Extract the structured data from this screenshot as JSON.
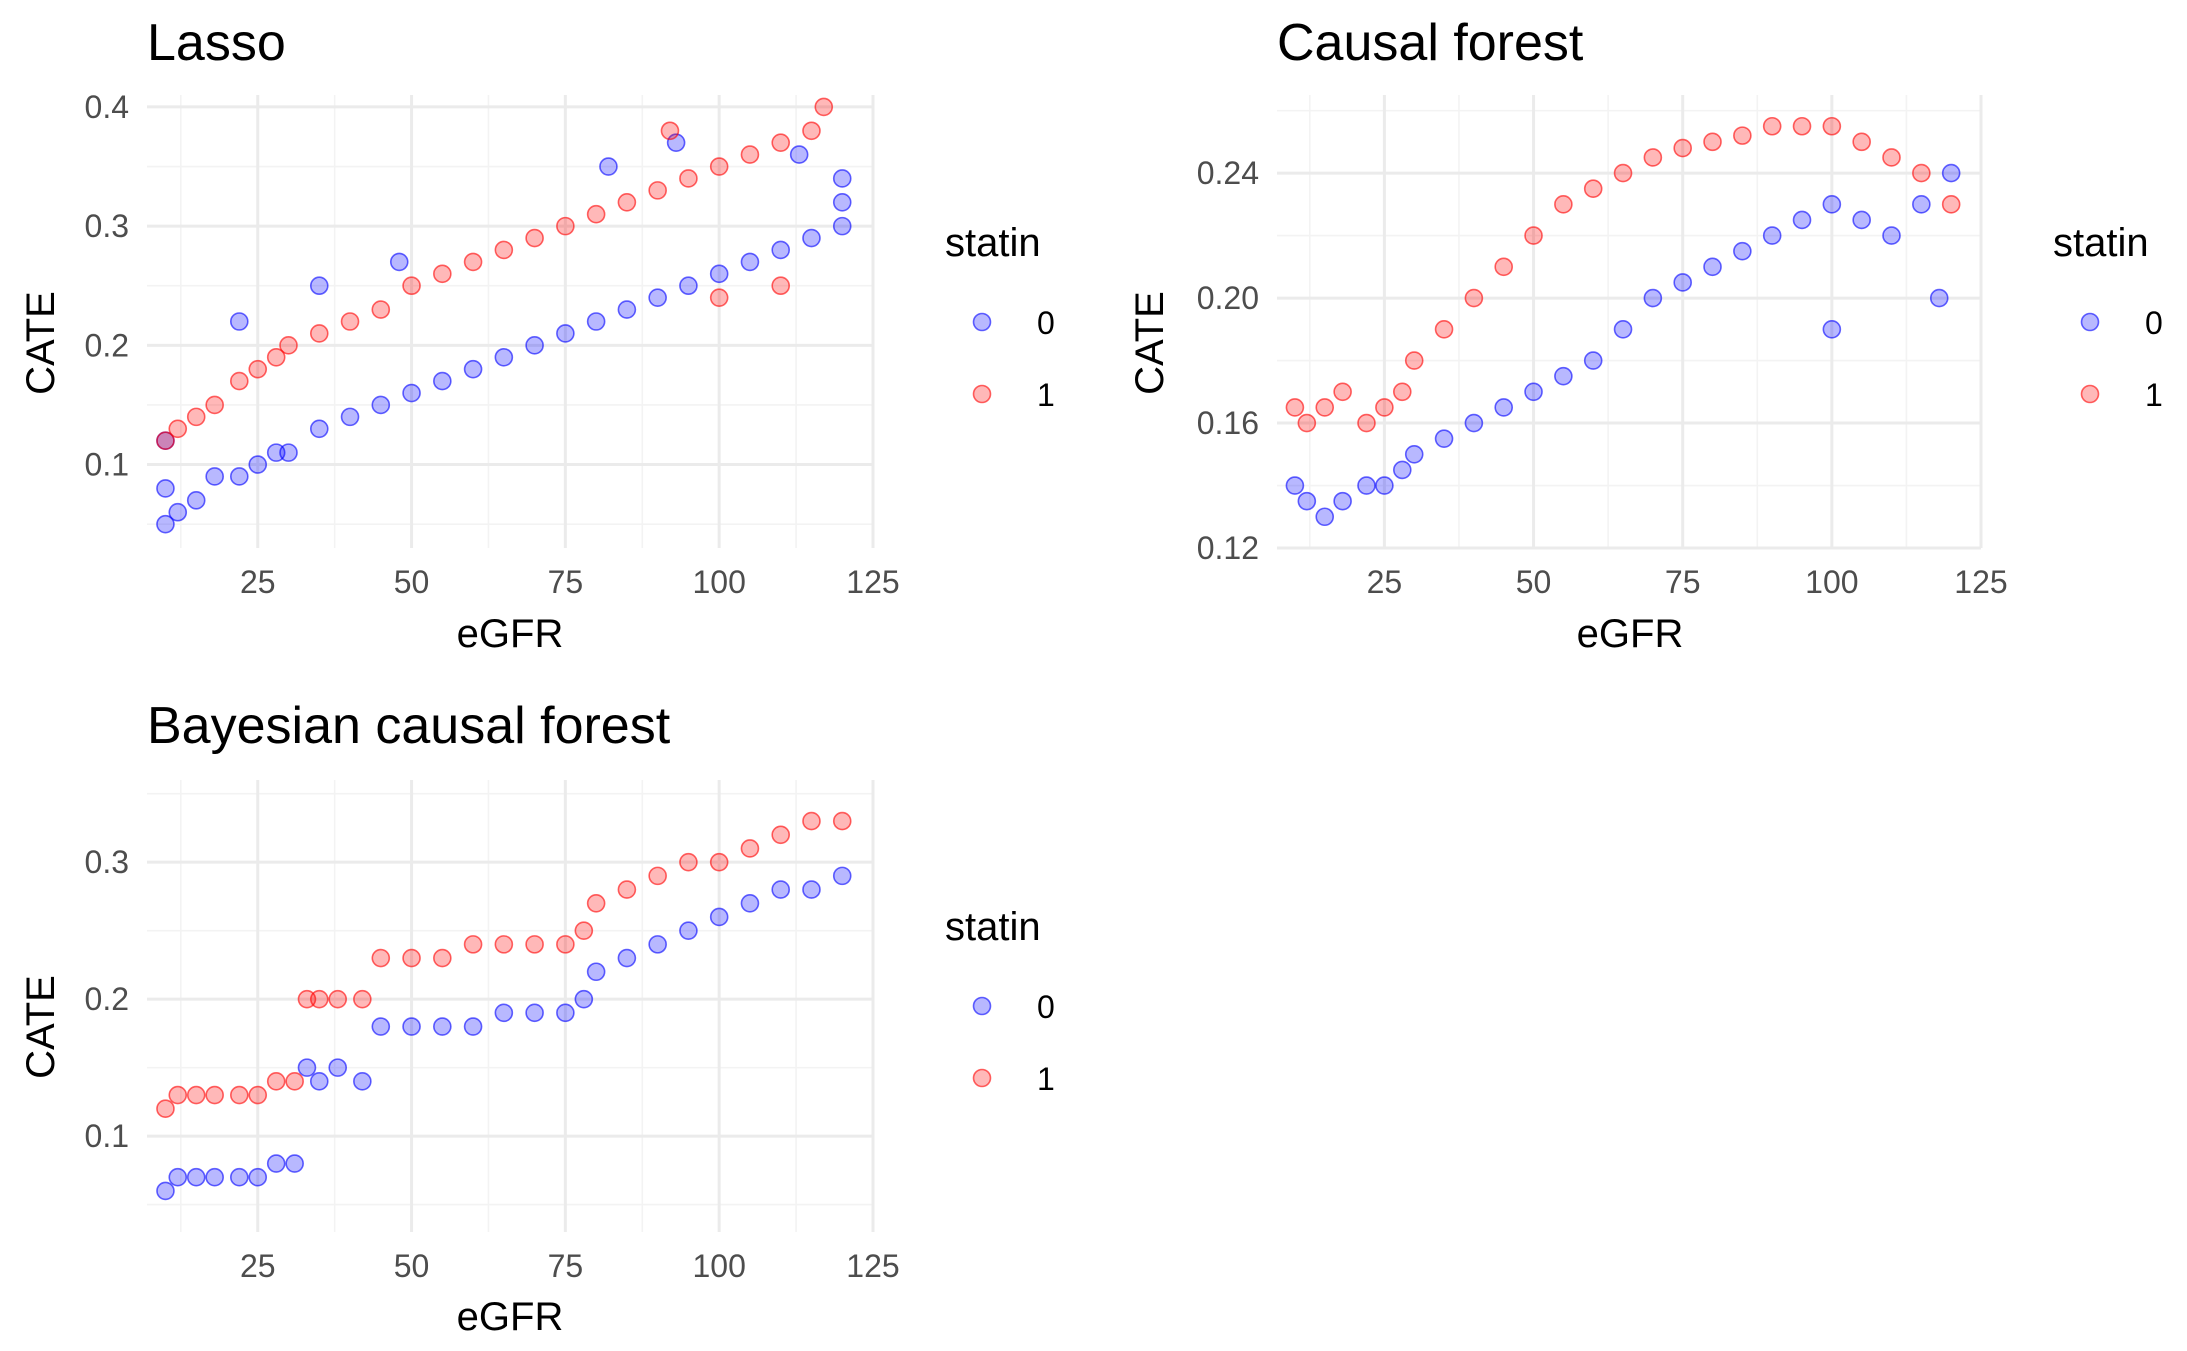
{
  "chart_data": [
    {
      "type": "scatter",
      "title": "Lasso",
      "xlabel": "eGFR",
      "ylabel": "CATE",
      "xlim": [
        7,
        125
      ],
      "ylim": [
        0.03,
        0.41
      ],
      "x_ticks": [
        25,
        50,
        75,
        100,
        125
      ],
      "x_tick_labels": [
        "25",
        "50",
        "75",
        "100",
        "125"
      ],
      "y_ticks": [
        0.1,
        0.2,
        0.3,
        0.4
      ],
      "y_tick_labels": [
        "0.1",
        "0.2",
        "0.3",
        "0.4"
      ],
      "grid": true,
      "legend": {
        "title": "statin",
        "position": "right",
        "entries": [
          "0",
          "1"
        ]
      },
      "series": [
        {
          "name": "0",
          "color": "#0000ff",
          "x": [
            10,
            10,
            10,
            12,
            15,
            18,
            22,
            25,
            28,
            30,
            35,
            40,
            45,
            50,
            55,
            60,
            65,
            70,
            75,
            80,
            85,
            90,
            95,
            100,
            105,
            110,
            115,
            120,
            120,
            120,
            82,
            93,
            113,
            22,
            35,
            48
          ],
          "y": [
            0.05,
            0.08,
            0.12,
            0.06,
            0.07,
            0.09,
            0.09,
            0.1,
            0.11,
            0.11,
            0.13,
            0.14,
            0.15,
            0.16,
            0.17,
            0.18,
            0.19,
            0.2,
            0.21,
            0.22,
            0.23,
            0.24,
            0.25,
            0.26,
            0.27,
            0.28,
            0.29,
            0.3,
            0.32,
            0.34,
            0.35,
            0.37,
            0.36,
            0.22,
            0.25,
            0.27
          ]
        },
        {
          "name": "1",
          "color": "#ff0000",
          "x": [
            10,
            12,
            15,
            18,
            22,
            25,
            28,
            30,
            35,
            40,
            45,
            50,
            55,
            60,
            65,
            70,
            75,
            80,
            85,
            90,
            95,
            100,
            105,
            110,
            115,
            117,
            110,
            100,
            92
          ],
          "y": [
            0.12,
            0.13,
            0.14,
            0.15,
            0.17,
            0.18,
            0.19,
            0.2,
            0.21,
            0.22,
            0.23,
            0.25,
            0.26,
            0.27,
            0.28,
            0.29,
            0.3,
            0.31,
            0.32,
            0.33,
            0.34,
            0.35,
            0.36,
            0.37,
            0.38,
            0.4,
            0.25,
            0.24,
            0.38
          ]
        }
      ]
    },
    {
      "type": "scatter",
      "title": "Causal forest",
      "xlabel": "eGFR",
      "ylabel": "CATE",
      "xlim": [
        7,
        125
      ],
      "ylim": [
        0.12,
        0.265
      ],
      "x_ticks": [
        25,
        50,
        75,
        100,
        125
      ],
      "x_tick_labels": [
        "25",
        "50",
        "75",
        "100",
        "125"
      ],
      "y_ticks": [
        0.12,
        0.16,
        0.2,
        0.24
      ],
      "y_tick_labels": [
        "0.12",
        "0.16",
        "0.20",
        "0.24"
      ],
      "grid": true,
      "legend": {
        "title": "statin",
        "position": "right",
        "entries": [
          "0",
          "1"
        ]
      },
      "series": [
        {
          "name": "0",
          "color": "#0000ff",
          "x": [
            10,
            12,
            15,
            18,
            22,
            25,
            28,
            30,
            35,
            40,
            45,
            50,
            55,
            60,
            65,
            70,
            75,
            80,
            85,
            90,
            95,
            100,
            105,
            110,
            115,
            120,
            100,
            118
          ],
          "y": [
            0.14,
            0.135,
            0.13,
            0.135,
            0.14,
            0.14,
            0.145,
            0.15,
            0.155,
            0.16,
            0.165,
            0.17,
            0.175,
            0.18,
            0.19,
            0.2,
            0.205,
            0.21,
            0.215,
            0.22,
            0.225,
            0.23,
            0.225,
            0.22,
            0.23,
            0.24,
            0.19,
            0.2
          ]
        },
        {
          "name": "1",
          "color": "#ff0000",
          "x": [
            10,
            12,
            15,
            18,
            22,
            25,
            28,
            30,
            35,
            40,
            45,
            50,
            55,
            60,
            65,
            70,
            75,
            80,
            85,
            90,
            95,
            100,
            105,
            110,
            115,
            120
          ],
          "y": [
            0.165,
            0.16,
            0.165,
            0.17,
            0.16,
            0.165,
            0.17,
            0.18,
            0.19,
            0.2,
            0.21,
            0.22,
            0.23,
            0.235,
            0.24,
            0.245,
            0.248,
            0.25,
            0.252,
            0.255,
            0.255,
            0.255,
            0.25,
            0.245,
            0.24,
            0.23
          ]
        }
      ]
    },
    {
      "type": "scatter",
      "title": "Bayesian causal forest",
      "xlabel": "eGFR",
      "ylabel": "CATE",
      "xlim": [
        7,
        125
      ],
      "ylim": [
        0.03,
        0.36
      ],
      "x_ticks": [
        25,
        50,
        75,
        100,
        125
      ],
      "x_tick_labels": [
        "25",
        "50",
        "75",
        "100",
        "125"
      ],
      "y_ticks": [
        0.1,
        0.2,
        0.3
      ],
      "y_tick_labels": [
        "0.1",
        "0.2",
        "0.3"
      ],
      "grid": true,
      "legend": {
        "title": "statin",
        "position": "right",
        "entries": [
          "0",
          "1"
        ]
      },
      "series": [
        {
          "name": "0",
          "color": "#0000ff",
          "x": [
            10,
            12,
            15,
            18,
            22,
            25,
            28,
            31,
            33,
            35,
            38,
            42,
            45,
            50,
            55,
            60,
            65,
            70,
            75,
            78,
            80,
            85,
            90,
            95,
            100,
            105,
            110,
            115,
            120
          ],
          "y": [
            0.06,
            0.07,
            0.07,
            0.07,
            0.07,
            0.07,
            0.08,
            0.08,
            0.15,
            0.14,
            0.15,
            0.14,
            0.18,
            0.18,
            0.18,
            0.18,
            0.19,
            0.19,
            0.19,
            0.2,
            0.22,
            0.23,
            0.24,
            0.25,
            0.26,
            0.27,
            0.28,
            0.28,
            0.29
          ]
        },
        {
          "name": "1",
          "color": "#ff0000",
          "x": [
            10,
            12,
            15,
            18,
            22,
            25,
            28,
            31,
            33,
            35,
            38,
            42,
            45,
            50,
            55,
            60,
            65,
            70,
            75,
            78,
            80,
            85,
            90,
            95,
            100,
            105,
            110,
            115,
            120
          ],
          "y": [
            0.12,
            0.13,
            0.13,
            0.13,
            0.13,
            0.13,
            0.14,
            0.14,
            0.2,
            0.2,
            0.2,
            0.2,
            0.23,
            0.23,
            0.23,
            0.24,
            0.24,
            0.24,
            0.24,
            0.25,
            0.27,
            0.28,
            0.29,
            0.3,
            0.3,
            0.31,
            0.32,
            0.33,
            0.33
          ]
        }
      ]
    }
  ]
}
